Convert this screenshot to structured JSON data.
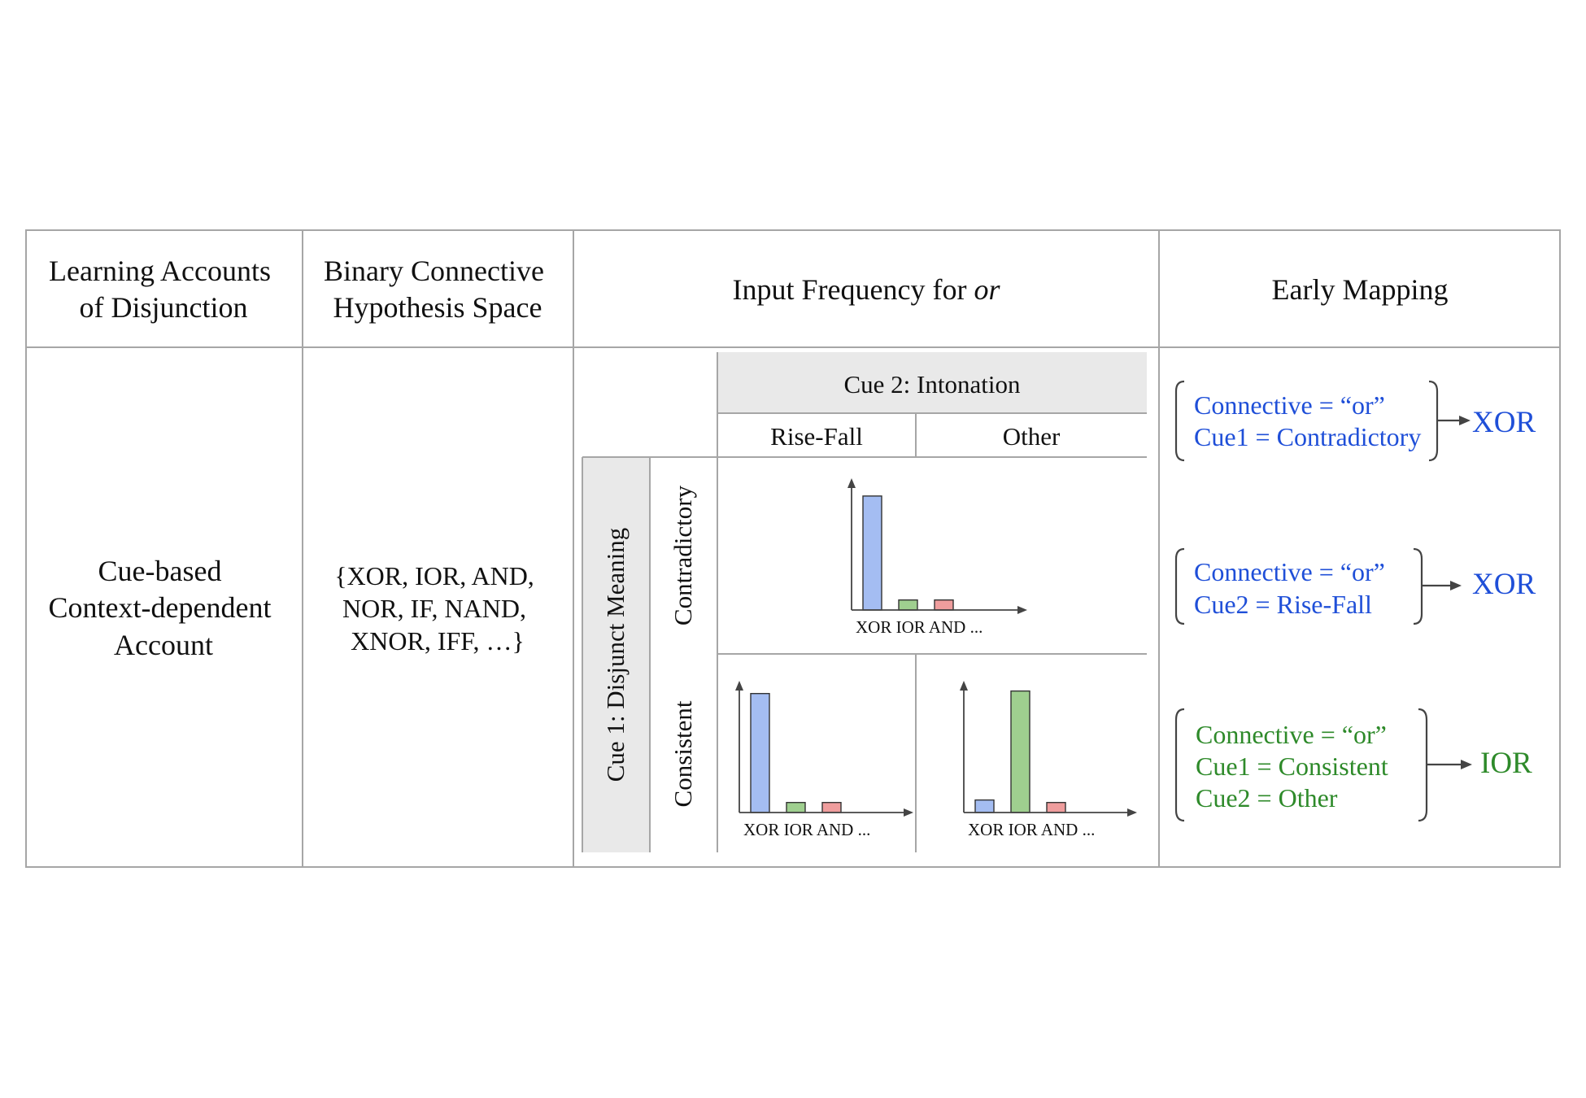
{
  "header": {
    "col1": [
      "Learning Accounts",
      "of Disjunction"
    ],
    "col2": [
      "Binary Connective",
      "Hypothesis Space"
    ],
    "col3_prefix": "Input Frequency for ",
    "col3_italic": "or",
    "col4": "Early Mapping"
  },
  "row": {
    "account": [
      "Cue-based",
      "Context-dependent",
      "Account"
    ],
    "hypothesis_space": [
      "{XOR, IOR, AND,",
      "NOR, IF, NAND,",
      "XNOR, IFF, …}"
    ]
  },
  "frequency_table": {
    "cue2_title": "Cue 2: Intonation",
    "cue2_values": [
      "Rise-Fall",
      "Other"
    ],
    "cue1_title": "Cue 1: Disjunct Meaning",
    "cue1_values": [
      "Contradictory",
      "Consistent"
    ],
    "bar_colors": {
      "XOR": "#a4bdf2",
      "IOR": "#9fcf8f",
      "AND": "#ef9d9d"
    },
    "charts": [
      {
        "cue1": "Contradictory",
        "cue2": "Rise-Fall + Other",
        "tick_text": "XOR IOR AND  ...",
        "bars": [
          {
            "label": "XOR",
            "value": 0.91
          },
          {
            "label": "IOR",
            "value": 0.08
          },
          {
            "label": "AND",
            "value": 0.08
          }
        ]
      },
      {
        "cue1": "Consistent",
        "cue2": "Rise-Fall",
        "tick_text": "XOR IOR AND  ...",
        "bars": [
          {
            "label": "XOR",
            "value": 0.95
          },
          {
            "label": "IOR",
            "value": 0.08
          },
          {
            "label": "AND",
            "value": 0.08
          }
        ]
      },
      {
        "cue1": "Consistent",
        "cue2": "Other",
        "tick_text": "XOR IOR AND  ...",
        "bars": [
          {
            "label": "XOR",
            "value": 0.1
          },
          {
            "label": "IOR",
            "value": 0.97
          },
          {
            "label": "AND",
            "value": 0.08
          }
        ]
      }
    ]
  },
  "early_mapping": [
    {
      "lines": [
        "Connective = “or”",
        "Cue1 = Contradictory"
      ],
      "output": "XOR",
      "color": "#1f4fd8"
    },
    {
      "lines": [
        "Connective = “or”",
        "Cue2 = Rise-Fall"
      ],
      "output": "XOR",
      "color": "#1f4fd8"
    },
    {
      "lines": [
        "Connective = “or”",
        "Cue1 = Consistent",
        "Cue2 = Other"
      ],
      "output": "IOR",
      "color": "#2e8a2a"
    }
  ]
}
